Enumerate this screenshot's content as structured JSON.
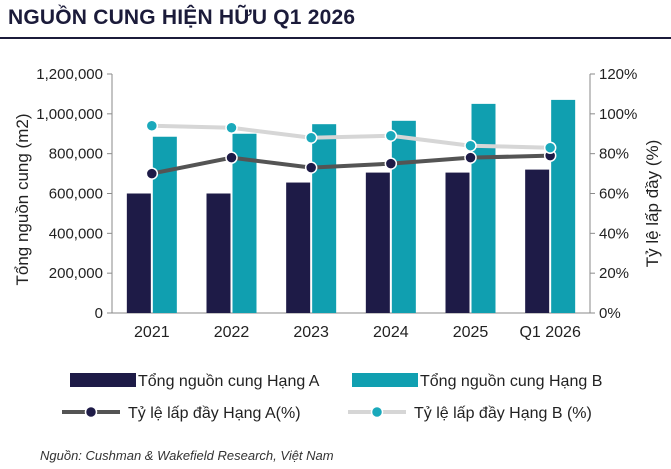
{
  "title": "NGUỒN CUNG HIỆN HỮU Q1 2026",
  "source": "Nguồn: Cushman & Wakefield Research, Việt Nam",
  "colors": {
    "series_a": "#1e1b47",
    "series_b": "#109fb0",
    "line_a": "#545454",
    "line_a_marker": "#1e1b47",
    "line_b": "#d6d6d6",
    "line_b_marker": "#1aa9bb"
  },
  "chart_data": {
    "type": "bar",
    "categories": [
      "2021",
      "2022",
      "2023",
      "2024",
      "2025",
      "Q1 2026"
    ],
    "ylabel": "Tổng nguồn cung (m2)",
    "y2label": "Tỷ lệ lấp đầy (%)",
    "ylim": [
      0,
      1200000
    ],
    "y2lim": [
      0,
      120
    ],
    "yticks": [
      "0",
      "200,000",
      "400,000",
      "600,000",
      "800,000",
      "1,000,000",
      "1,200,000"
    ],
    "y2ticks": [
      "0%",
      "20%",
      "40%",
      "60%",
      "80%",
      "100%",
      "120%"
    ],
    "legend_position": "bottom",
    "series": [
      {
        "name": "Tổng nguồn cung Hạng A",
        "kind": "bar",
        "axis": "left",
        "values": [
          600000,
          600000,
          655000,
          705000,
          705000,
          720000
        ]
      },
      {
        "name": "Tổng nguồn cung Hạng B",
        "kind": "bar",
        "axis": "left",
        "values": [
          885000,
          900000,
          948000,
          965000,
          1050000,
          1070000
        ]
      },
      {
        "name": "Tỷ lệ lấp đầy Hạng A(%)",
        "kind": "line",
        "axis": "right",
        "values": [
          70,
          78,
          73,
          75,
          78,
          79
        ]
      },
      {
        "name": "Tỷ lệ lấp đầy Hạng B (%)",
        "kind": "line",
        "axis": "right",
        "values": [
          94,
          93,
          88,
          89,
          84,
          83
        ]
      }
    ]
  }
}
